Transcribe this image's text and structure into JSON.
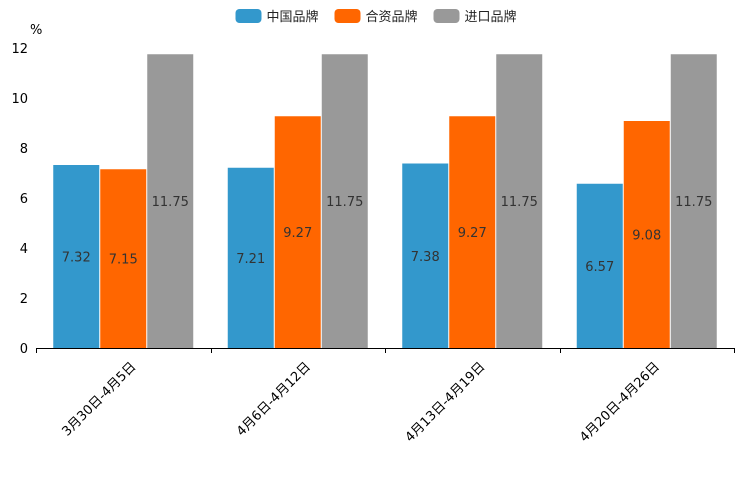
{
  "chart_data": {
    "type": "bar",
    "title": "",
    "xlabel": "",
    "ylabel": "%",
    "ylim": [
      0,
      12
    ],
    "yticks": [
      0,
      2,
      4,
      6,
      8,
      10,
      12
    ],
    "grid": false,
    "legend_position": "top-center",
    "categories": [
      "3月30日-4月5日",
      "4月6日-4月12日",
      "4月13日-4月19日",
      "4月20日-4月26日"
    ],
    "series": [
      {
        "name": "中国品牌",
        "color": "#3398cc",
        "values": [
          7.32,
          7.21,
          7.38,
          6.57
        ]
      },
      {
        "name": "合资品牌",
        "color": "#ff6600",
        "values": [
          7.15,
          9.27,
          9.27,
          9.08
        ]
      },
      {
        "name": "进口品牌",
        "color": "#999999",
        "values": [
          11.75,
          11.75,
          11.75,
          11.75
        ]
      }
    ]
  }
}
